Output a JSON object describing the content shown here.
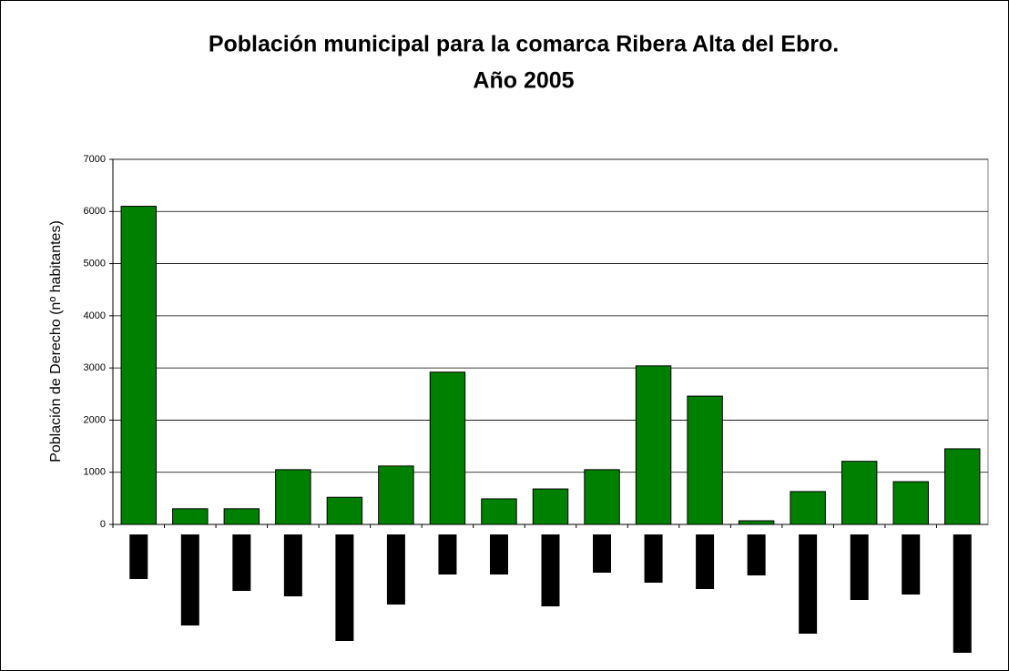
{
  "chart_data": {
    "type": "bar",
    "title": [
      "Población municipal para la comarca Ribera Alta del Ebro.",
      "Año 2005"
    ],
    "y_label": "Población de Derecho (nº habitantes)",
    "categories": [
      null,
      null,
      null,
      null,
      null,
      null,
      null,
      null,
      null,
      null,
      null,
      null,
      null,
      null,
      null,
      null,
      null
    ],
    "values": [
      6100,
      300,
      300,
      1050,
      520,
      1120,
      2920,
      490,
      680,
      1050,
      3040,
      2460,
      70,
      630,
      1210,
      820,
      1450
    ],
    "color": "#008000",
    "ylim": [
      0,
      7000
    ],
    "yticks": [
      0,
      1000,
      2000,
      3000,
      4000,
      5000,
      6000,
      7000
    ],
    "grid": true
  }
}
